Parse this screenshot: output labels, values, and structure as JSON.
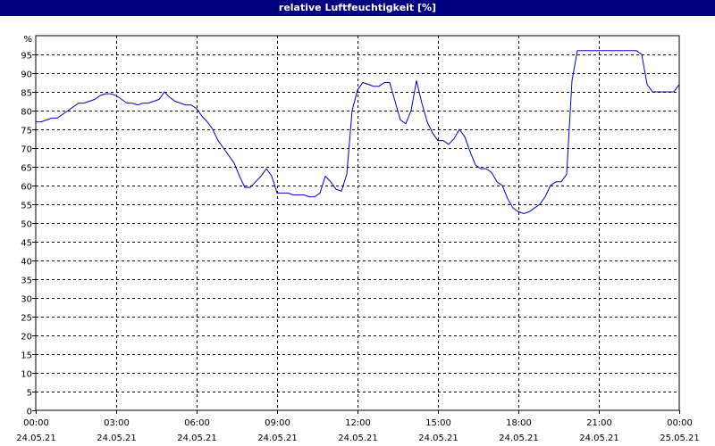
{
  "window": {
    "title": "relative Luftfeuchtigkeit [%]"
  },
  "colors": {
    "title_bar": "#000080",
    "title_text": "#ffffff",
    "line": "#0000c8",
    "grid": "#000000",
    "axis": "#000000"
  },
  "chart_data": {
    "type": "line",
    "title": "relative Luftfeuchtigkeit [%]",
    "ylabel": "%",
    "xlabel": "",
    "ylim": [
      0,
      100
    ],
    "xlim": [
      0,
      24
    ],
    "grid": true,
    "y_ticks": [
      0,
      5,
      10,
      15,
      20,
      25,
      30,
      35,
      40,
      45,
      50,
      55,
      60,
      65,
      70,
      75,
      80,
      85,
      90,
      95
    ],
    "x_ticks": [
      {
        "value": 0,
        "time": "00:00",
        "date": "24.05.21"
      },
      {
        "value": 3,
        "time": "03:00",
        "date": "24.05.21"
      },
      {
        "value": 6,
        "time": "06:00",
        "date": "24.05.21"
      },
      {
        "value": 9,
        "time": "09:00",
        "date": "24.05.21"
      },
      {
        "value": 12,
        "time": "12:00",
        "date": "24.05.21"
      },
      {
        "value": 15,
        "time": "15:00",
        "date": "24.05.21"
      },
      {
        "value": 18,
        "time": "18:00",
        "date": "24.05.21"
      },
      {
        "value": 21,
        "time": "21:00",
        "date": "24.05.21"
      },
      {
        "value": 24,
        "time": "00:00",
        "date": "25.05.21"
      }
    ],
    "series": [
      {
        "x": [
          0.0,
          0.2,
          0.4,
          0.6,
          0.8,
          1.0,
          1.2,
          1.4,
          1.6,
          1.8,
          2.0,
          2.2,
          2.4,
          2.6,
          2.8,
          3.0,
          3.2,
          3.4,
          3.6,
          3.8,
          4.0,
          4.2,
          4.4,
          4.6,
          4.8,
          5.0,
          5.2,
          5.4,
          5.6,
          5.8,
          6.0,
          6.2,
          6.4,
          6.6,
          6.8,
          7.0,
          7.2,
          7.4,
          7.6,
          7.8,
          8.0,
          8.2,
          8.4,
          8.6,
          8.8,
          9.0,
          9.2,
          9.4,
          9.6,
          9.8,
          10.0,
          10.2,
          10.4,
          10.6,
          10.8,
          11.0,
          11.2,
          11.4,
          11.6,
          11.8,
          12.0,
          12.2,
          12.4,
          12.6,
          12.8,
          13.0,
          13.2,
          13.4,
          13.6,
          13.8,
          14.0,
          14.2,
          14.4,
          14.6,
          14.8,
          15.0,
          15.2,
          15.4,
          15.6,
          15.8,
          16.0,
          16.2,
          16.4,
          16.6,
          16.8,
          17.0,
          17.2,
          17.4,
          17.6,
          17.8,
          18.0,
          18.2,
          18.4,
          18.6,
          18.8,
          19.0,
          19.2,
          19.4,
          19.6,
          19.8,
          20.0,
          20.2,
          20.4,
          20.6,
          20.8,
          21.0,
          21.2,
          21.4,
          21.6,
          21.8,
          22.0,
          22.2,
          22.4,
          22.6,
          22.8,
          23.0,
          23.2,
          23.4,
          23.6,
          23.8,
          24.0
        ],
        "y": [
          77,
          77,
          77.5,
          78,
          78,
          79,
          80,
          81,
          82,
          82,
          82.5,
          83,
          84,
          84.5,
          84.5,
          84,
          83,
          82,
          82,
          81.5,
          82,
          82,
          82.5,
          83,
          85,
          83.5,
          82.5,
          82,
          81.5,
          81.5,
          80.5,
          78.5,
          77,
          75,
          72,
          70,
          68,
          66,
          62.5,
          59.5,
          59.5,
          61,
          62.5,
          64.5,
          62.5,
          58,
          58,
          58,
          57.5,
          57.5,
          57.5,
          57,
          57,
          58,
          62.5,
          61,
          59,
          58.5,
          63,
          80,
          85.5,
          87.5,
          87,
          86.5,
          86.5,
          87.5,
          87.5,
          82.5,
          77.5,
          76.5,
          80,
          88,
          82,
          77,
          74,
          72,
          72,
          71,
          72.5,
          75,
          73,
          69,
          65.5,
          64.5,
          64.5,
          63.5,
          61,
          60,
          56.5,
          54,
          53,
          52.5,
          53,
          54,
          55,
          57,
          60,
          61,
          61,
          63,
          88,
          96,
          96,
          96,
          96,
          96,
          96,
          96,
          96,
          96,
          96,
          96,
          96,
          95,
          87,
          85,
          85,
          85,
          85,
          85,
          87
        ]
      }
    ]
  }
}
